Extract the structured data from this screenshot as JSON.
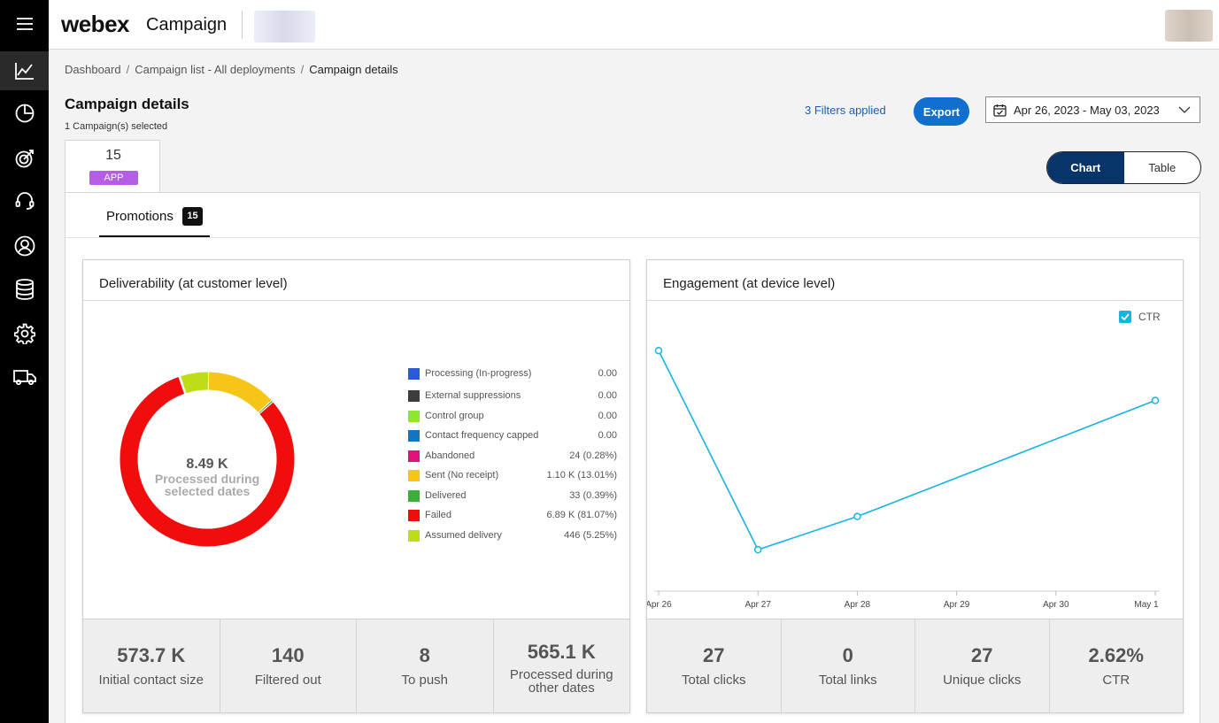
{
  "app": {
    "logo": "webex",
    "product": "Campaign"
  },
  "breadcrumb": {
    "dashboard": "Dashboard",
    "list": "Campaign list - All deployments",
    "current": "Campaign details",
    "sep": "/"
  },
  "page": {
    "title": "Campaign details",
    "subtitle": "1 Campaign(s) selected"
  },
  "filters": {
    "label": "3 Filters applied"
  },
  "export_label": "Export",
  "date_range": "Apr 26, 2023 - May 03, 2023",
  "app_tab": {
    "count": "15",
    "badge": "APP"
  },
  "view_toggle": {
    "chart": "Chart",
    "table": "Table",
    "selected": "Chart"
  },
  "promotions": {
    "label": "Promotions",
    "count": "15"
  },
  "deliverability": {
    "title": "Deliverability (at customer level)",
    "center_value": "8.49 K",
    "center_label_1": "Processed during",
    "center_label_2": "selected dates",
    "stats": [
      {
        "value": "573.7 K",
        "label": "Initial contact size"
      },
      {
        "value": "140",
        "label": "Filtered out"
      },
      {
        "value": "8",
        "label": "To push"
      },
      {
        "value": "565.1 K",
        "label": "Processed during other dates"
      }
    ]
  },
  "engagement": {
    "title": "Engagement (at device level)",
    "ctr_label": "CTR",
    "stats": [
      {
        "value": "27",
        "label": "Total clicks"
      },
      {
        "value": "0",
        "label": "Total links"
      },
      {
        "value": "27",
        "label": "Unique clicks"
      },
      {
        "value": "2.62%",
        "label": "CTR"
      }
    ]
  },
  "chart_data": [
    {
      "type": "pie",
      "title": "Deliverability (at customer level)",
      "categories": [
        "Processing (In-progress)",
        "External suppressions",
        "Control group",
        "Contact frequency capped",
        "Abandoned",
        "Sent (No receipt)",
        "Delivered",
        "Failed",
        "Assumed delivery"
      ],
      "values": [
        0,
        0,
        0,
        0,
        24,
        1100,
        33,
        6890,
        446
      ],
      "display_values": [
        "0.00",
        "0.00",
        "0.00",
        "0.00",
        "24 (0.28%)",
        "1.10 K (13.01%)",
        "33 (0.39%)",
        "6.89 K (81.07%)",
        "446 (5.25%)"
      ],
      "colors": [
        "#2a5ad7",
        "#3d3d3d",
        "#8ee62d",
        "#1474c4",
        "#e0137b",
        "#f5c518",
        "#3cae3c",
        "#f20d0d",
        "#bfdd16"
      ],
      "order": [
        8,
        5,
        6,
        7
      ],
      "legend_position": "right"
    },
    {
      "type": "line",
      "title": "Engagement (at device level)",
      "categories": [
        "Apr 26",
        "Apr 27",
        "Apr 28",
        "Apr 29",
        "Apr 30",
        "May 1"
      ],
      "x": [
        0,
        1,
        2,
        5
      ],
      "series": [
        {
          "name": "CTR",
          "values": [
            5.8,
            1.0,
            1.8,
            4.6
          ],
          "color": "#17b4e0"
        }
      ],
      "ylim": [
        0,
        7
      ],
      "grid": false,
      "legend_position": "top-right"
    }
  ]
}
